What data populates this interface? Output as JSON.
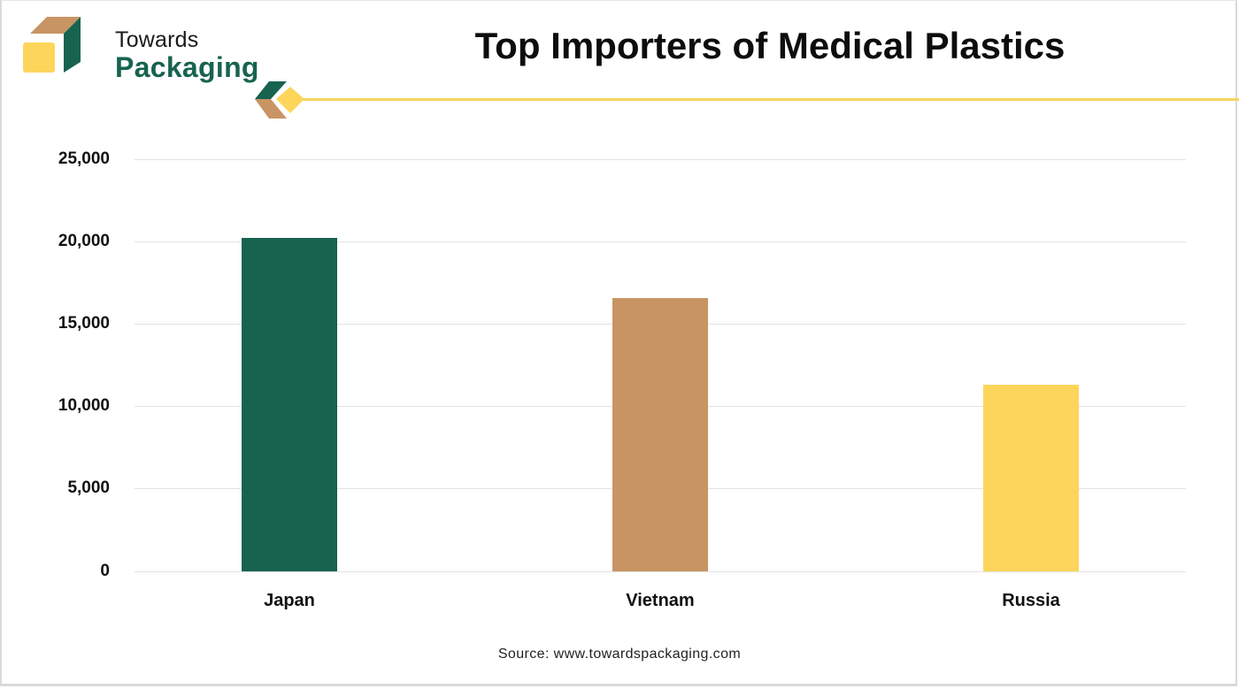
{
  "brand": {
    "line1": "Towards",
    "line2": "Packaging",
    "colors": {
      "green": "#17634f",
      "tan": "#c99463",
      "yellow": "#fdd55b"
    }
  },
  "header": {
    "title": "Top Importers of Medical Plastics"
  },
  "footer": {
    "source": "Source: www.towardspackaging.com"
  },
  "axis": {
    "y_ticks": [
      "25,000",
      "20,000",
      "15,000",
      "10,000",
      "5,000",
      "0"
    ],
    "x_labels": [
      "Japan",
      "Vietnam",
      "Russia"
    ]
  },
  "chart_data": {
    "type": "bar",
    "title": "Top Importers of Medical Plastics",
    "categories": [
      "Japan",
      "Vietnam",
      "Russia"
    ],
    "values": [
      20200,
      16600,
      11300
    ],
    "colors": [
      "#17634f",
      "#c99463",
      "#fdd55b"
    ],
    "xlabel": "",
    "ylabel": "",
    "ylim": [
      0,
      25000
    ],
    "y_ticks": [
      0,
      5000,
      10000,
      15000,
      20000,
      25000
    ],
    "grid": true,
    "legend": null,
    "source": "Source: www.towardspackaging.com"
  }
}
